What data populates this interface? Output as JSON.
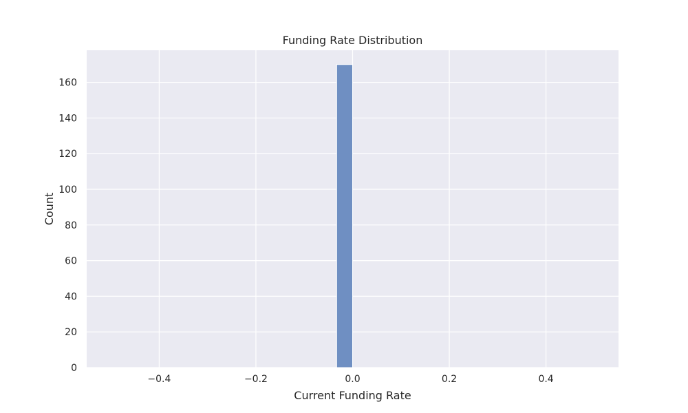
{
  "chart_data": {
    "type": "bar",
    "title": "Funding Rate Distribution",
    "xlabel": "Current Funding Rate",
    "ylabel": "Count",
    "xlim": [
      -0.55,
      0.55
    ],
    "ylim": [
      0,
      178
    ],
    "xticks": [
      -0.4,
      -0.2,
      0.0,
      0.2,
      0.4
    ],
    "xtick_labels": [
      "−0.4",
      "−0.2",
      "0.0",
      "0.2",
      "0.4"
    ],
    "yticks": [
      0,
      20,
      40,
      60,
      80,
      100,
      120,
      140,
      160
    ],
    "ytick_labels": [
      "0",
      "20",
      "40",
      "60",
      "80",
      "100",
      "120",
      "140",
      "160"
    ],
    "bins": [
      {
        "x0": -0.033,
        "x1": 0.0,
        "count": 170
      }
    ],
    "grid": true,
    "colors": {
      "plot_background": "#eaeaf2",
      "grid": "#ffffff",
      "bar": "#6f8fc2"
    }
  }
}
